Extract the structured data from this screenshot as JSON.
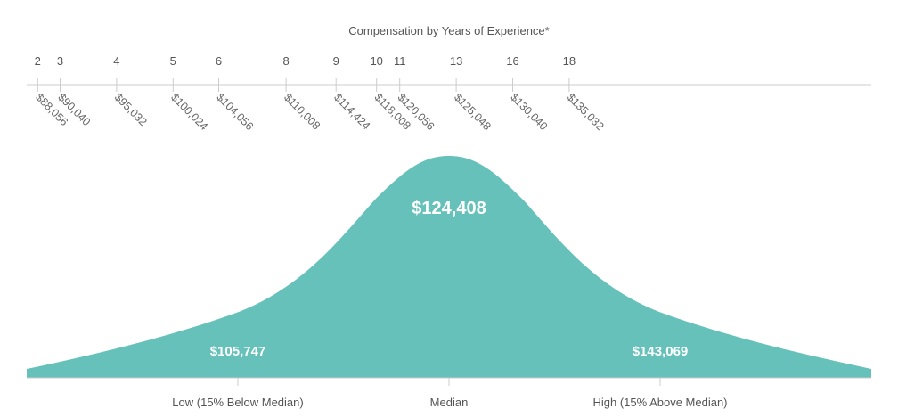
{
  "chart_data": {
    "type": "area",
    "title": "Compensation by Years of Experience*",
    "experience_scale": [
      {
        "years": "2",
        "salary": "$88,056"
      },
      {
        "years": "3",
        "salary": "$90,040"
      },
      {
        "years": "4",
        "salary": "$95,032"
      },
      {
        "years": "5",
        "salary": "$100,024"
      },
      {
        "years": "6",
        "salary": "$104,056"
      },
      {
        "years": "8",
        "salary": "$110,008"
      },
      {
        "years": "9",
        "salary": "$114,424"
      },
      {
        "years": "10",
        "salary": "$118,008"
      },
      {
        "years": "11",
        "salary": "$120,056"
      },
      {
        "years": "13",
        "salary": "$125,048"
      },
      {
        "years": "16",
        "salary": "$130,040"
      },
      {
        "years": "18",
        "salary": "$135,032"
      }
    ],
    "distribution": {
      "low": {
        "label": "Low (15% Below Median)",
        "value": "$105,747"
      },
      "median": {
        "label": "Median",
        "value": "$124,408"
      },
      "high": {
        "label": "High (15% Above Median)",
        "value": "$143,069"
      }
    },
    "fill_color": "#65c1b9",
    "line_color": "#cccccc"
  }
}
